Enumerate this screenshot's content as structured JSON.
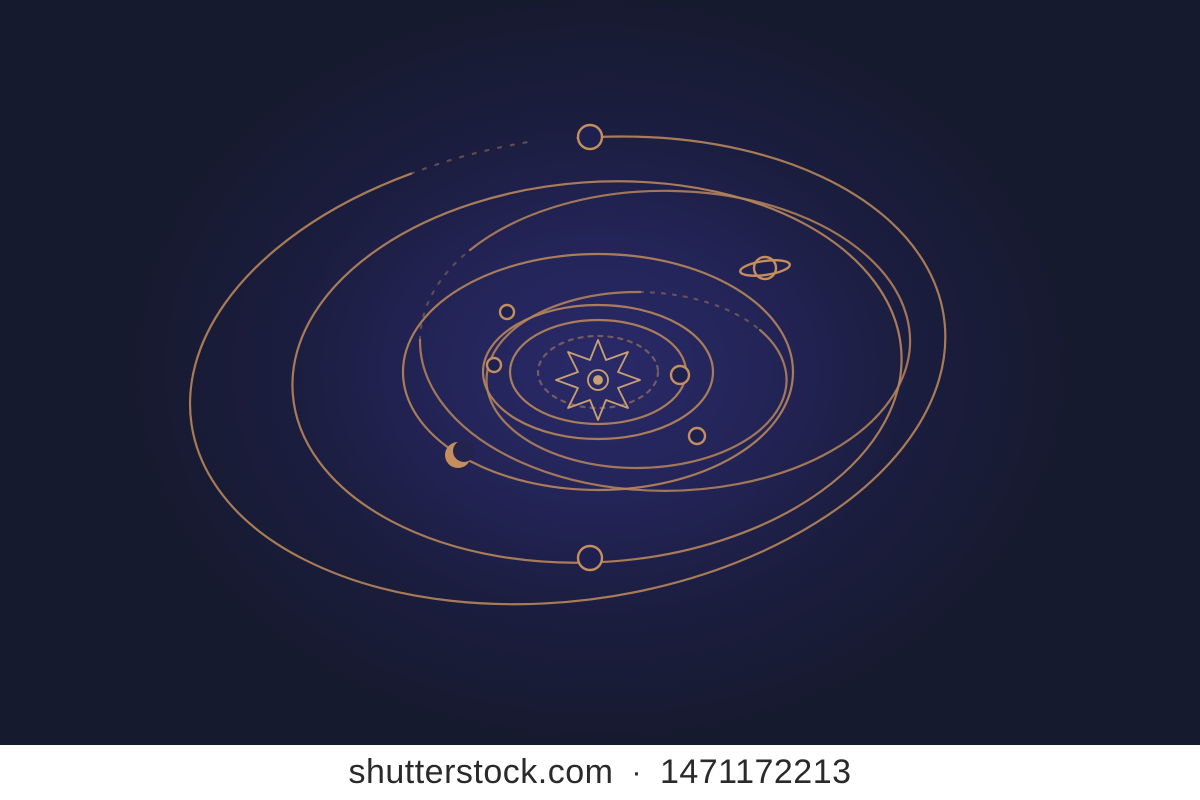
{
  "watermark": {
    "site": "shutterstock.com",
    "separator": "·",
    "image_id": "1471172213"
  },
  "colors": {
    "background_center": "#2a2a6a",
    "background_edge": "#161a2e",
    "orbit_gold": "#b8865a",
    "sun_line": "#c9a070",
    "footer_bg": "#ffffff",
    "footer_text": "#2a2a2a"
  },
  "icons": {
    "sun": "sun-icon",
    "planet": "planet-icon",
    "ringed_planet": "ringed-planet-icon",
    "crescent": "crescent-moon-icon"
  }
}
